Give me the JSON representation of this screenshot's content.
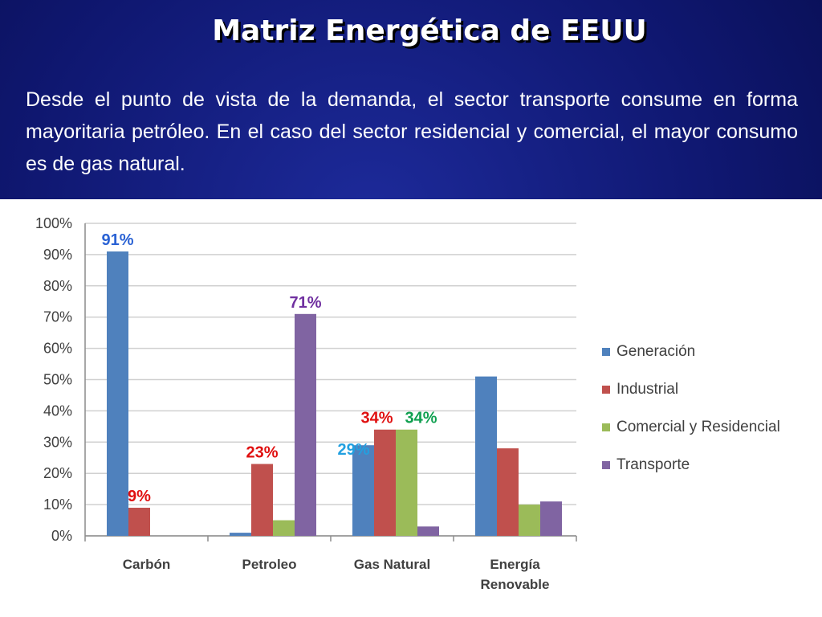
{
  "slide": {
    "title": "Matriz Energética de EEUU",
    "body": "Desde el punto de vista de la demanda, el sector transporte consume en forma mayoritaria petróleo. En el caso del sector residencial y comercial, el mayor consumo es de gas natural."
  },
  "chart_data": {
    "type": "bar",
    "title": "",
    "xlabel": "",
    "ylabel": "",
    "ylim": [
      0,
      100
    ],
    "yticks": [
      "0%",
      "10%",
      "20%",
      "30%",
      "40%",
      "50%",
      "60%",
      "70%",
      "80%",
      "90%",
      "100%"
    ],
    "grid": true,
    "legend_position": "right",
    "categories": [
      {
        "lines": [
          "Carbón"
        ]
      },
      {
        "lines": [
          "Petroleo"
        ]
      },
      {
        "lines": [
          "Gas Natural"
        ]
      },
      {
        "lines": [
          "Energía",
          "Renovable"
        ]
      }
    ],
    "series": [
      {
        "name": "Generación",
        "color": "#4f81bd",
        "values": [
          91,
          1,
          29,
          51
        ]
      },
      {
        "name": "Industrial",
        "color": "#c0504d",
        "values": [
          9,
          23,
          34,
          28
        ]
      },
      {
        "name": "Comercial y Residencial",
        "color": "#9bbb59",
        "values": [
          0,
          5,
          34,
          10
        ]
      },
      {
        "name": "Transporte",
        "color": "#8064a2",
        "values": [
          0,
          71,
          3,
          11
        ]
      }
    ],
    "data_labels": [
      {
        "text": "91%",
        "series": 0,
        "category": 0,
        "color": "#2a62d4"
      },
      {
        "text": "9%",
        "series": 1,
        "category": 0,
        "color": "#e01010"
      },
      {
        "text": "23%",
        "series": 1,
        "category": 1,
        "color": "#e01010"
      },
      {
        "text": "71%",
        "series": 3,
        "category": 1,
        "color": "#7030a0"
      },
      {
        "text": "29%",
        "series": 0,
        "category": 2,
        "color": "#22a0e0"
      },
      {
        "text": "34%",
        "series": 1,
        "category": 2,
        "color": "#e01010"
      },
      {
        "text": "34%",
        "series": 2,
        "category": 2,
        "color": "#10a050"
      }
    ]
  }
}
